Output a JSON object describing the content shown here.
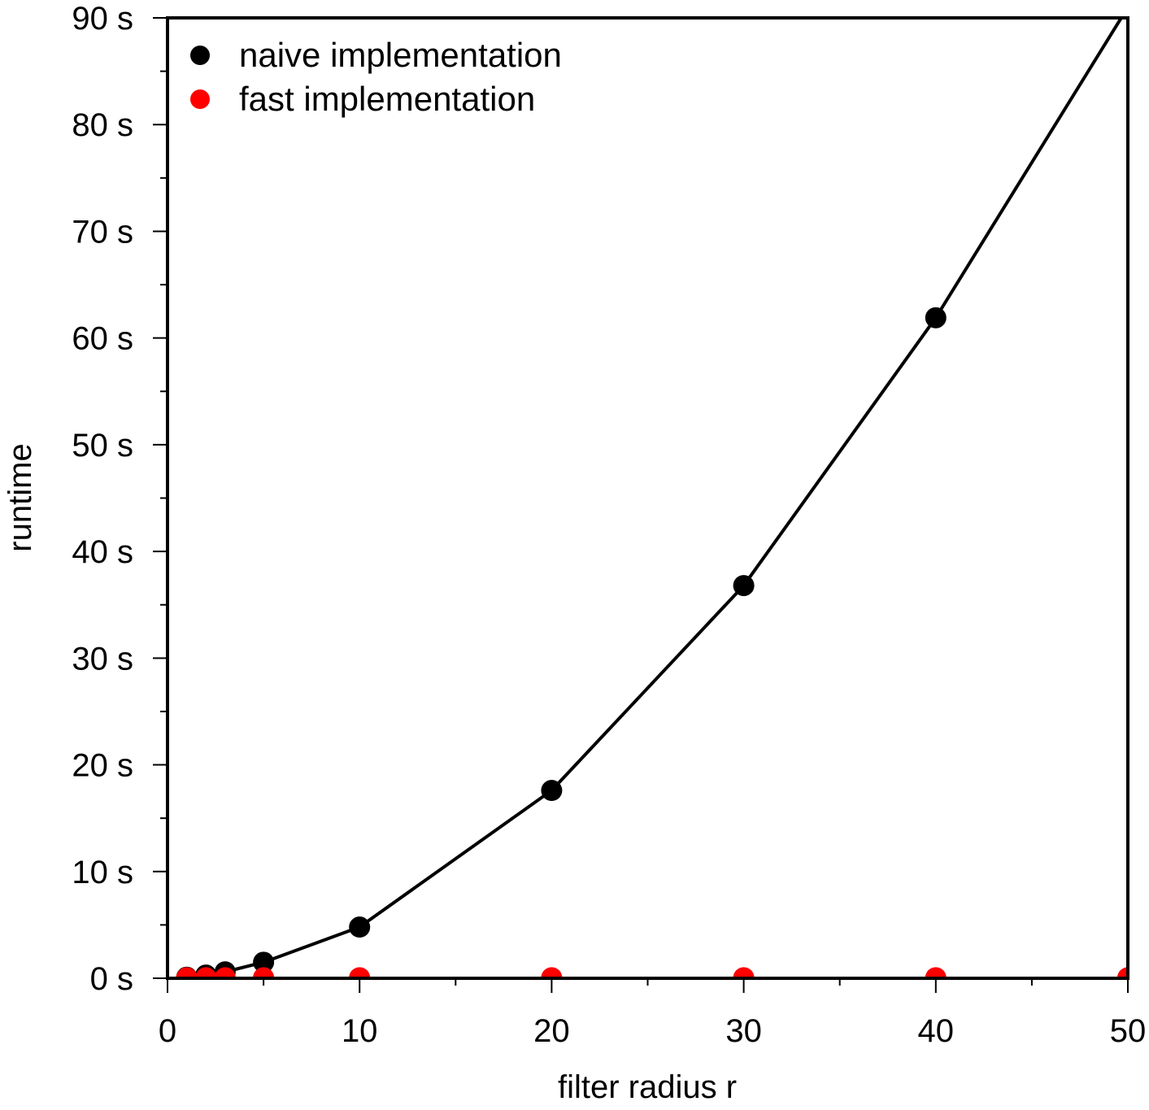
{
  "chart_data": {
    "type": "line",
    "title": "",
    "xlabel": "filter radius r",
    "ylabel": "runtime",
    "xlim": [
      0,
      50
    ],
    "ylim": [
      0,
      90
    ],
    "x_ticks": [
      0,
      10,
      20,
      30,
      40,
      50
    ],
    "x_tick_labels": [
      "0",
      "10",
      "20",
      "30",
      "40",
      "50"
    ],
    "y_ticks": [
      0,
      10,
      20,
      30,
      40,
      50,
      60,
      70,
      80,
      90
    ],
    "y_tick_labels": [
      "0 s",
      "10 s",
      "20 s",
      "30 s",
      "40 s",
      "50 s",
      "60 s",
      "70 s",
      "80 s",
      "90 s"
    ],
    "grid": false,
    "legend_position": "top-left",
    "series": [
      {
        "name": "naive implementation",
        "color": "#000000",
        "line": true,
        "x": [
          1,
          2,
          3,
          5,
          10,
          20,
          30,
          40,
          50
        ],
        "y": [
          0.1,
          0.3,
          0.6,
          1.5,
          4.8,
          17.6,
          36.8,
          61.9,
          91
        ]
      },
      {
        "name": "fast implementation",
        "color": "#ff0000",
        "line": false,
        "x": [
          1,
          2,
          3,
          5,
          10,
          20,
          30,
          40,
          50
        ],
        "y": [
          0.05,
          0.05,
          0.05,
          0.05,
          0.05,
          0.05,
          0.05,
          0.05,
          0.05
        ]
      }
    ]
  }
}
